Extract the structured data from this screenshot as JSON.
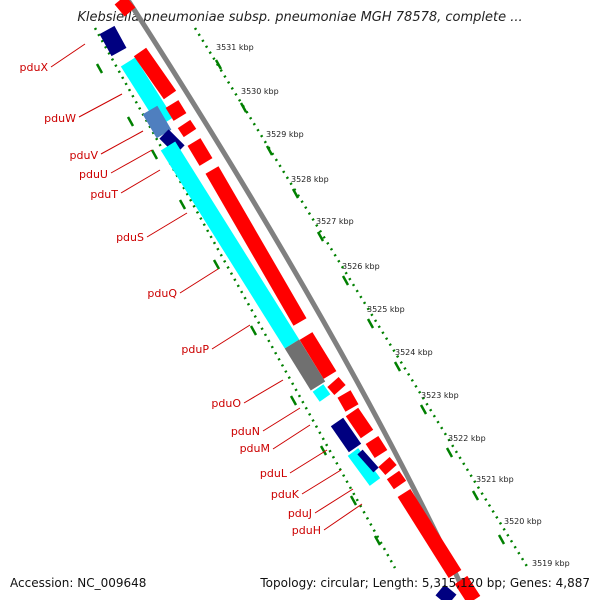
{
  "title": "Klebsiella pneumoniae subsp. pneumoniae MGH 78578, complete ...",
  "footer": {
    "accession": "Accession: NC_009648",
    "summary": "Topology: circular; Length: 5,315,120 bp; Genes: 4,887"
  },
  "colors": {
    "forward_cds": "#ff0000",
    "reverse_cds": "#00ffff",
    "hit_dark": "#000080",
    "hit_medium": "#4f7fbf",
    "hit_grey": "#707070",
    "backbone": "#808080",
    "gc_ticks": "#008000",
    "label": "#cc0000"
  },
  "scale": {
    "unit": "kbp",
    "labels": [
      "3531 kbp",
      "3530 kbp",
      "3529 kbp",
      "3528 kbp",
      "3527 kbp",
      "3526 kbp",
      "3525 kbp",
      "3524 kbp",
      "3523 kbp",
      "3522 kbp",
      "3521 kbp",
      "3520 kbp",
      "3519 kbp"
    ]
  },
  "gene_labels": [
    "pduX",
    "pduW",
    "pduV",
    "pduU",
    "pduT",
    "pduS",
    "pduQ",
    "pduP",
    "pduO",
    "pduN",
    "pduM",
    "pduL",
    "pduK",
    "pduJ",
    "pduH"
  ]
}
